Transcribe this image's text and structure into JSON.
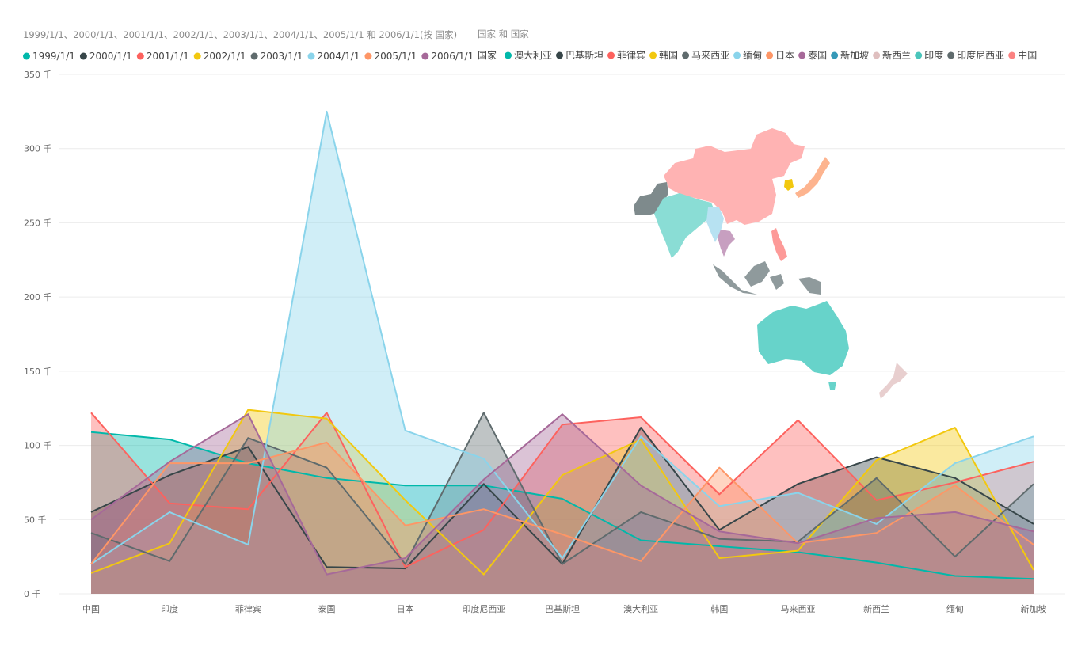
{
  "chart_data": {
    "type": "area",
    "legend_main": {
      "title": "1999/1/1、2000/1/1、2001/1/1、2002/1/1、2003/1/1、2004/1/1、2005/1/1 和 2006/1/1(按 国家)",
      "placement": "top-left"
    },
    "legend_map": {
      "title": "国家 和 国家",
      "label": "国家",
      "placement": "top-right",
      "items": [
        {
          "name": "澳大利亚",
          "color": "#01B8AA"
        },
        {
          "name": "巴基斯坦",
          "color": "#374649"
        },
        {
          "name": "菲律宾",
          "color": "#FD625E"
        },
        {
          "name": "韩国",
          "color": "#F2C80F"
        },
        {
          "name": "马来西亚",
          "color": "#5F6B6D"
        },
        {
          "name": "缅甸",
          "color": "#8AD4EB"
        },
        {
          "name": "日本",
          "color": "#FE9666"
        },
        {
          "name": "泰国",
          "color": "#A66999"
        },
        {
          "name": "新加坡",
          "color": "#3599B8"
        },
        {
          "name": "新西兰",
          "color": "#DFBFBF"
        },
        {
          "name": "印度",
          "color": "#4AC5BB"
        },
        {
          "name": "印度尼西亚",
          "color": "#5F6B6D"
        },
        {
          "name": "中国",
          "color": "#FB8281"
        }
      ]
    },
    "categories": [
      "中国",
      "印度",
      "菲律宾",
      "泰国",
      "日本",
      "印度尼西亚",
      "巴基斯坦",
      "澳大利亚",
      "韩国",
      "马来西亚",
      "新西兰",
      "缅甸",
      "新加坡"
    ],
    "y_ticks": [
      "0 千",
      "50 千",
      "100 千",
      "150 千",
      "200 千",
      "250 千",
      "300 千",
      "350 千"
    ],
    "ylim": [
      0,
      350000
    ],
    "grid": true,
    "series": [
      {
        "name": "1999/1/1",
        "color": "#01B8AA",
        "values": [
          109000,
          104000,
          88000,
          78000,
          73000,
          73000,
          64000,
          36000,
          32000,
          28000,
          21000,
          12000,
          10000
        ]
      },
      {
        "name": "2000/1/1",
        "color": "#374649",
        "values": [
          55000,
          80000,
          99000,
          18000,
          17000,
          74000,
          20000,
          112000,
          43000,
          74000,
          92000,
          78000,
          47000
        ]
      },
      {
        "name": "2001/1/1",
        "color": "#FD625E",
        "values": [
          122000,
          61000,
          57000,
          122000,
          18000,
          43000,
          114000,
          119000,
          67000,
          117000,
          63000,
          75000,
          89000
        ]
      },
      {
        "name": "2002/1/1",
        "color": "#F2C80F",
        "values": [
          14000,
          34000,
          124000,
          118000,
          63000,
          13000,
          80000,
          104000,
          24000,
          29000,
          90000,
          112000,
          16000
        ]
      },
      {
        "name": "2003/1/1",
        "color": "#5F6B6D",
        "values": [
          41000,
          22000,
          105000,
          85000,
          20000,
          122000,
          20000,
          55000,
          37000,
          35000,
          78000,
          25000,
          74000
        ]
      },
      {
        "name": "2004/1/1",
        "color": "#8AD4EB",
        "values": [
          20000,
          55000,
          33000,
          325000,
          110000,
          91000,
          24000,
          106000,
          59000,
          68000,
          47000,
          88000,
          106000
        ]
      },
      {
        "name": "2005/1/1",
        "color": "#FE9666",
        "values": [
          20000,
          88000,
          88000,
          102000,
          46000,
          57000,
          40000,
          22000,
          85000,
          34000,
          41000,
          73000,
          33000
        ]
      },
      {
        "name": "2006/1/1",
        "color": "#A66999",
        "values": [
          50000,
          89000,
          121000,
          13000,
          24000,
          77000,
          121000,
          73000,
          42000,
          34000,
          51000,
          55000,
          42000
        ]
      }
    ]
  }
}
